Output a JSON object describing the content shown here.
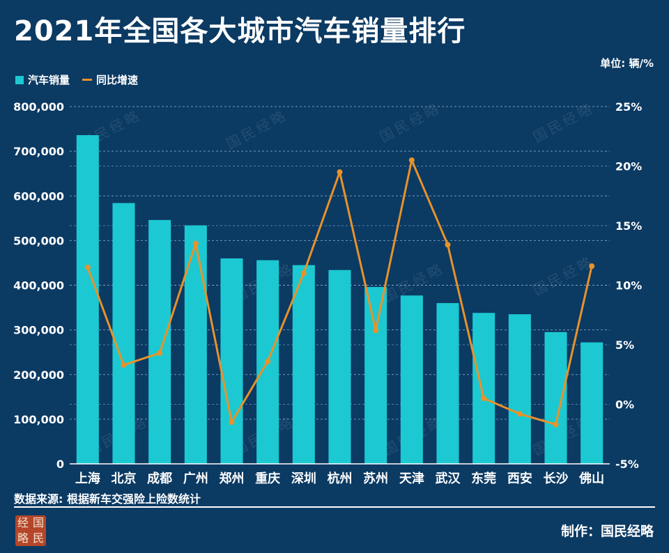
{
  "page": {
    "title": "2021年全国各大城市汽车销量排行",
    "unit": "单位: 辆/%",
    "source": "数据来源: 根据新车交强险上险数统计",
    "credit": "制作：国民经略",
    "seal_chars": [
      "经",
      "国",
      "略",
      "民"
    ],
    "watermark": "国民经略"
  },
  "colors": {
    "background": "#0b3a63",
    "bar": "#1cc9d2",
    "line": "#e8922a",
    "grid": "#8fb0cc"
  },
  "chart_data": {
    "type": "bar",
    "categories": [
      "上海",
      "北京",
      "成都",
      "广州",
      "郑州",
      "重庆",
      "深圳",
      "杭州",
      "苏州",
      "天津",
      "武汉",
      "东莞",
      "西安",
      "长沙",
      "佛山"
    ],
    "series": [
      {
        "name": "汽车销量",
        "type": "bar",
        "axis": "left",
        "values": [
          736000,
          584000,
          546000,
          534000,
          460000,
          456000,
          445000,
          434000,
          396000,
          377000,
          360000,
          338000,
          335000,
          295000,
          272000
        ]
      },
      {
        "name": "同比增速",
        "type": "line",
        "axis": "right",
        "values": [
          11.5,
          3.3,
          4.3,
          13.5,
          -1.5,
          3.6,
          11.0,
          19.5,
          6.2,
          20.5,
          13.4,
          0.5,
          -0.8,
          -1.7,
          11.6
        ]
      }
    ],
    "y_left": {
      "min": 0,
      "max": 800000,
      "ticks": [
        "0",
        "100,000",
        "200,000",
        "300,000",
        "400,000",
        "500,000",
        "600,000",
        "700,000",
        "800,000"
      ]
    },
    "y_right": {
      "min": -5,
      "max": 25,
      "ticks": [
        "-5%",
        "0%",
        "5%",
        "10%",
        "15%",
        "20%",
        "25%"
      ]
    },
    "grid": true,
    "legend_position": "top-left"
  }
}
